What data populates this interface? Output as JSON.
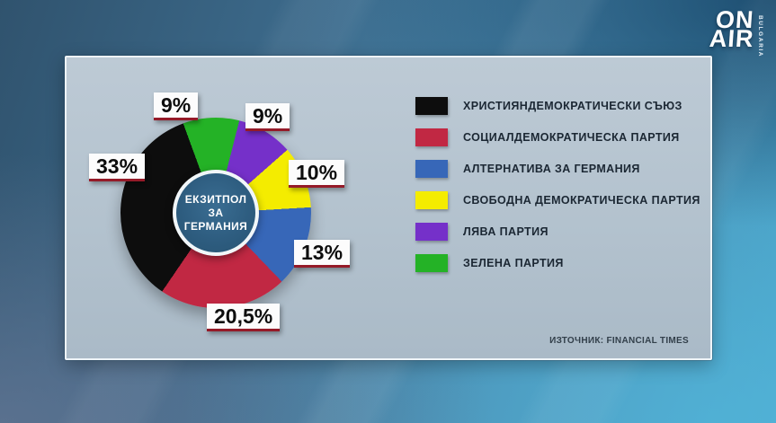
{
  "logo": {
    "line1": "ON",
    "line2": "AIR",
    "vertical_text": "BULGARIA"
  },
  "chart_data": {
    "type": "pie",
    "title": "ЕКЗИТПОЛ ЗА ГЕРМАНИЯ",
    "center_label": [
      "ЕКЗИТПОЛ ЗА",
      "ГЕРМАНИЯ"
    ],
    "unit": "%",
    "legend_position": "right",
    "segments": [
      {
        "party": "ХРИСТИЯНДЕМОКРАТИЧЕСКИ СЪЮЗ",
        "value": 33,
        "label": "33%",
        "color": "#0d0d0d"
      },
      {
        "party": "СОЦИАЛДЕМОКРАТИЧЕСКА ПАРТИЯ",
        "value": 20.5,
        "label": "20,5%",
        "color": "#c12843"
      },
      {
        "party": "АЛТЕРНАТИВА ЗА ГЕРМАНИЯ",
        "value": 13,
        "label": "13%",
        "color": "#3767b8"
      },
      {
        "party": "СВОБОДНА ДЕМОКРАТИЧЕСКА ПАРТИЯ",
        "value": 10,
        "label": "10%",
        "color": "#f4ec00"
      },
      {
        "party": "ЛЯВА ПАРТИЯ",
        "value": 9,
        "label": "9%",
        "color": "#7530c9"
      },
      {
        "party": "ЗЕЛЕНА ПАРТИЯ",
        "value": 9,
        "label": "9%",
        "color": "#24b226"
      }
    ],
    "source": "ИЗТОЧНИК: FINANCIAL TIMES"
  }
}
